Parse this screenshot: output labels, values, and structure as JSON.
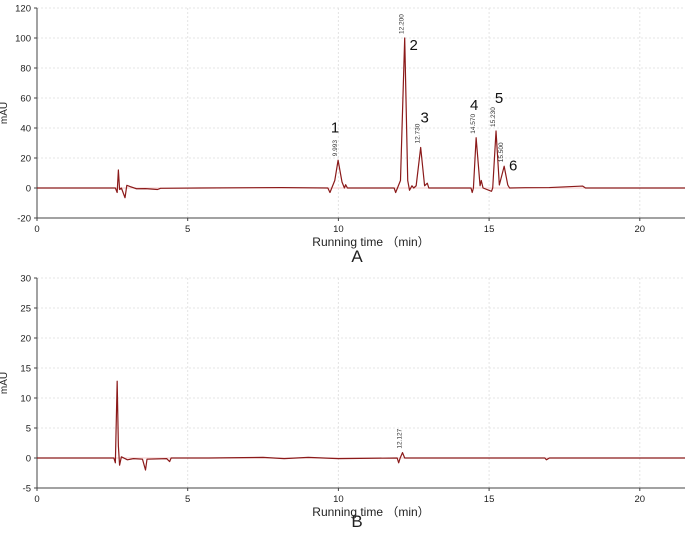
{
  "chart_data": [
    {
      "type": "line",
      "panel_label": "A",
      "xlabel": "Running time （min）",
      "ylabel": "mAU",
      "xlim": [
        0,
        21.5
      ],
      "ylim": [
        -20,
        120
      ],
      "xticks": [
        0,
        5,
        10,
        15,
        20
      ],
      "yticks": [
        -20,
        0,
        20,
        40,
        60,
        80,
        100,
        120
      ],
      "grid": true,
      "line_color": "#8b1a1a",
      "baseline_y": 0.0,
      "series": [
        {
          "points": [
            [
              0.0,
              0.0
            ],
            [
              2.6,
              0.0
            ],
            [
              2.66,
              -3.0
            ],
            [
              2.7,
              12.0
            ],
            [
              2.74,
              -1.0
            ],
            [
              2.8,
              0.0
            ],
            [
              2.92,
              -6.5
            ],
            [
              2.98,
              1.8
            ],
            [
              3.1,
              0.9
            ],
            [
              3.3,
              -0.5
            ],
            [
              3.6,
              -0.4
            ],
            [
              4.0,
              -1.0
            ],
            [
              4.1,
              -0.2
            ],
            [
              5.4,
              0.0
            ],
            [
              8.1,
              0.3
            ],
            [
              9.65,
              0.0
            ],
            [
              9.72,
              -3.0
            ],
            [
              9.78,
              0.0
            ],
            [
              9.88,
              5.0
            ],
            [
              9.99,
              18.5
            ],
            [
              10.12,
              4.0
            ],
            [
              10.2,
              0.0
            ],
            [
              10.24,
              2.2
            ],
            [
              10.3,
              0.0
            ],
            [
              11.85,
              0.0
            ],
            [
              11.9,
              -3.0
            ],
            [
              11.96,
              0.0
            ],
            [
              12.06,
              5.0
            ],
            [
              12.2,
              100.0
            ],
            [
              12.3,
              5.0
            ],
            [
              12.36,
              -1.5
            ],
            [
              12.44,
              1.5
            ],
            [
              12.5,
              0.0
            ],
            [
              12.58,
              1.5
            ],
            [
              12.73,
              27.0
            ],
            [
              12.86,
              1.5
            ],
            [
              12.95,
              3.2
            ],
            [
              13.0,
              0.0
            ],
            [
              14.4,
              0.0
            ],
            [
              14.44,
              -3.0
            ],
            [
              14.48,
              0.0
            ],
            [
              14.57,
              33.5
            ],
            [
              14.7,
              1.5
            ],
            [
              14.74,
              5.0
            ],
            [
              14.8,
              0.0
            ],
            [
              15.08,
              -2.2
            ],
            [
              15.12,
              0.0
            ],
            [
              15.23,
              38.0
            ],
            [
              15.34,
              2.0
            ],
            [
              15.5,
              14.5
            ],
            [
              15.62,
              2.0
            ],
            [
              15.68,
              0.0
            ],
            [
              16.2,
              0.2
            ],
            [
              17.0,
              0.3
            ],
            [
              18.1,
              1.3
            ],
            [
              18.2,
              0.0
            ],
            [
              21.5,
              0.0
            ]
          ]
        }
      ],
      "peaks": [
        {
          "number": "1",
          "x": 9.99,
          "y": 18.5,
          "rt_label": "9.993"
        },
        {
          "number": "2",
          "x": 12.2,
          "y": 100.0,
          "rt_label": "12.200"
        },
        {
          "number": "3",
          "x": 12.73,
          "y": 27.0,
          "rt_label": "12.730"
        },
        {
          "number": "4",
          "x": 14.57,
          "y": 33.5,
          "rt_label": "14.570"
        },
        {
          "number": "5",
          "x": 15.23,
          "y": 38.0,
          "rt_label": "15.230"
        },
        {
          "number": "6",
          "x": 15.5,
          "y": 14.5,
          "rt_label": "15.500"
        }
      ]
    },
    {
      "type": "line",
      "panel_label": "B",
      "xlabel": "Running time （min）",
      "ylabel": "mAU",
      "xlim": [
        0,
        21.5
      ],
      "ylim": [
        -5,
        30
      ],
      "xticks": [
        0,
        5,
        10,
        15,
        20
      ],
      "yticks": [
        -5,
        0,
        5,
        10,
        15,
        20,
        25,
        30
      ],
      "grid": true,
      "line_color": "#8b1a1a",
      "baseline_y": 0.0,
      "series": [
        {
          "points": [
            [
              0.0,
              0.0
            ],
            [
              2.55,
              0.0
            ],
            [
              2.6,
              -0.8
            ],
            [
              2.66,
              12.8
            ],
            [
              2.7,
              2.0
            ],
            [
              2.74,
              -1.2
            ],
            [
              2.8,
              0.2
            ],
            [
              3.0,
              -0.3
            ],
            [
              3.2,
              -0.1
            ],
            [
              3.5,
              -0.2
            ],
            [
              3.6,
              -2.0
            ],
            [
              3.65,
              -0.2
            ],
            [
              4.3,
              -0.1
            ],
            [
              4.4,
              -0.6
            ],
            [
              4.45,
              0.0
            ],
            [
              5.7,
              0.0
            ],
            [
              7.5,
              0.1
            ],
            [
              8.2,
              -0.1
            ],
            [
              9.0,
              0.1
            ],
            [
              10.0,
              -0.1
            ],
            [
              11.95,
              0.0
            ],
            [
              12.0,
              -0.8
            ],
            [
              12.05,
              0.0
            ],
            [
              12.127,
              0.9
            ],
            [
              12.2,
              0.0
            ],
            [
              16.85,
              0.0
            ],
            [
              16.9,
              -0.3
            ],
            [
              17.0,
              0.0
            ],
            [
              21.5,
              0.0
            ]
          ]
        }
      ],
      "peaks": [
        {
          "number": "",
          "x": 12.127,
          "y": 0.9,
          "rt_label": "12.127"
        }
      ]
    }
  ]
}
